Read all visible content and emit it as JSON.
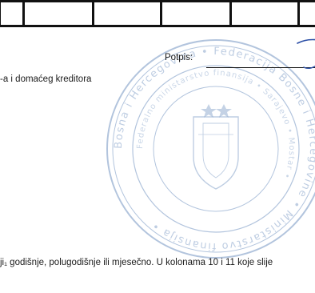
{
  "document": {
    "signature_label": "Potpis:",
    "creditor_text": "-a i domaćeg kreditora",
    "footnote_text": "ji₁ godišnje, polugodišnje ili mjesečno. U kolonama 10 i 11 koje slije"
  },
  "stamp": {
    "text": "Bosna i Hercegovina • Federacija Bosne i Hercegovine • Ministarstvo finansija",
    "color": "#8aa6cc"
  },
  "colors": {
    "ink": "#1a1a1a",
    "stamp": "#8aa6cc",
    "signature": "#2b4fa6"
  }
}
